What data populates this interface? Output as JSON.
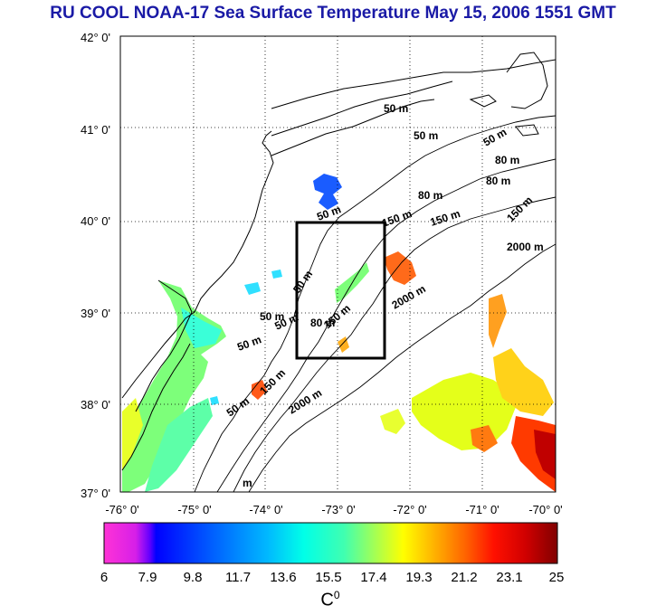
{
  "title": "RU COOL  NOAA-17 Sea Surface Temperature May 15, 2006 1551 GMT",
  "y_axis_labels": [
    "42° 0'",
    "41° 0'",
    "40° 0'",
    "39° 0'",
    "38° 0'",
    "37° 0'"
  ],
  "x_axis_labels": [
    "-76° 0'",
    "-75° 0'",
    "-74° 0'",
    "-73° 0'",
    "-72° 0'",
    "-71° 0'",
    "-70° 0'"
  ],
  "contours": {
    "c1": "50 m",
    "c2": "50 m",
    "c3": "50 m",
    "c4": "80 m",
    "c5": "80 m",
    "c6": "150 m",
    "c7": "150 m",
    "c8": "2000 m",
    "c9": "80 m",
    "c10": "50 m",
    "c11": "150 m",
    "c12": "2000 m",
    "c13": "50 m",
    "c14": "50 m",
    "c15": "80 m",
    "c16": "150 m",
    "c17": "50 m",
    "c18": "150 m",
    "c19": "2000 m",
    "c20": "50 m",
    "c21": "50 m",
    "c22": "m"
  },
  "colorbar": {
    "ticks": [
      "6",
      "7.9",
      "9.8",
      "11.7",
      "13.6",
      "15.5",
      "17.4",
      "19.3",
      "21.2",
      "23.1",
      "25"
    ],
    "unit": "C",
    "unit_sup": "0",
    "min": 6,
    "max": 25
  }
}
